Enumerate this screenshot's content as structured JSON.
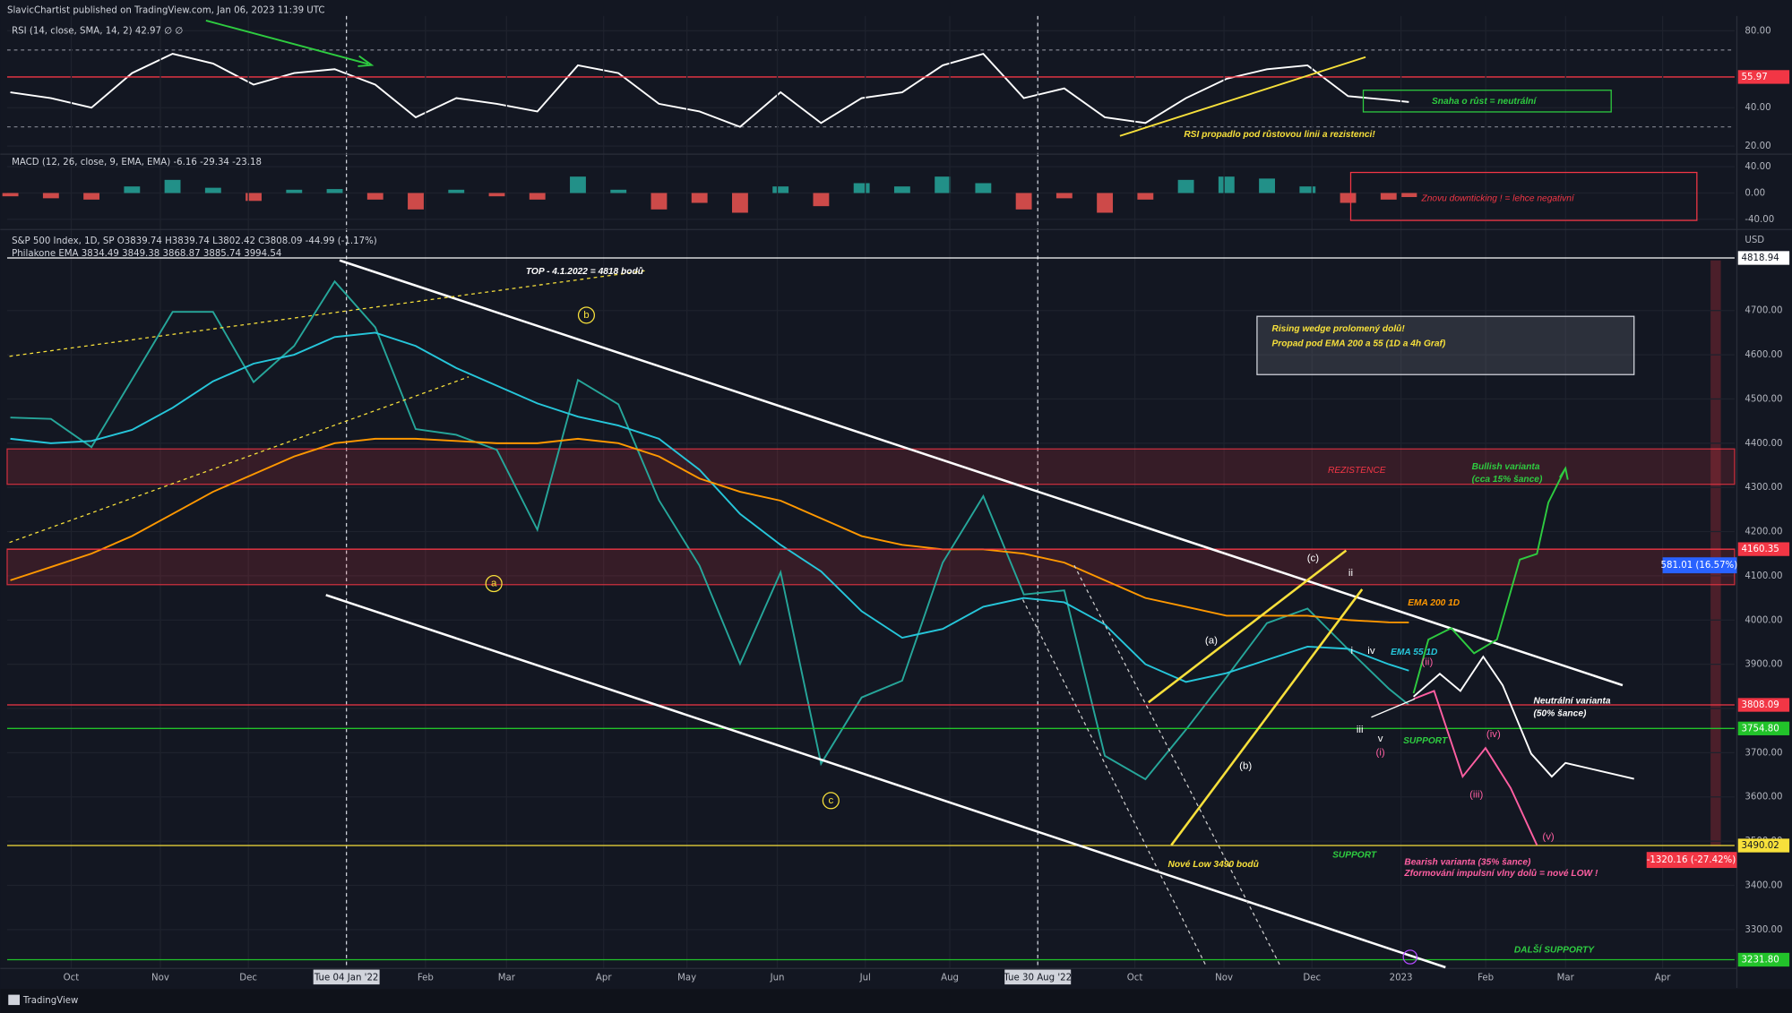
{
  "header": {
    "publisher": "SlavicChartist published on TradingView.com, Jan 06, 2023 11:39 UTC",
    "footer": "TradingView"
  },
  "chart_data": [
    {
      "type": "line",
      "legend": "RSI (14, close, SMA, 14, 2)  42.97  ∅  ∅",
      "x": [
        -3,
        -1,
        1,
        3,
        5,
        7,
        9,
        11,
        13,
        15,
        17,
        19,
        21,
        23,
        25,
        27,
        29,
        31,
        33,
        35,
        37,
        39,
        41,
        43,
        45,
        47,
        49,
        51,
        53,
        55,
        57,
        59,
        61,
        63,
        65,
        66
      ],
      "values": [
        48,
        45,
        40,
        58,
        68,
        63,
        52,
        58,
        60,
        52,
        35,
        45,
        42,
        38,
        62,
        58,
        42,
        38,
        30,
        48,
        32,
        45,
        48,
        62,
        68,
        45,
        50,
        35,
        32,
        45,
        55,
        60,
        62,
        46,
        44,
        42.97
      ],
      "color": "#ffffff",
      "xlim": [
        -3.16,
        82.07
      ],
      "ylim": [
        16.4,
        86.5
      ],
      "yticks": [
        {
          "value": 20,
          "label": "20.00"
        },
        {
          "value": 40,
          "label": "40.00"
        },
        {
          "value": 80,
          "label": "80.00"
        }
      ],
      "bands": [
        70,
        30
      ],
      "hlines": [
        {
          "value": 55.97,
          "color": "#f23645"
        }
      ],
      "annotations": [
        "Snaha o růst = neutrální",
        "RSI propadlo pod růstovou linii a rezistenci!"
      ]
    },
    {
      "type": "bar",
      "legend": "MACD (12, 26, close, 9, EMA, EMA)  -6.16  -29.34  -23.18",
      "x": [
        -3,
        -1,
        1,
        3,
        5,
        7,
        9,
        11,
        13,
        15,
        17,
        19,
        21,
        23,
        25,
        27,
        29,
        31,
        33,
        35,
        37,
        39,
        41,
        43,
        45,
        47,
        49,
        51,
        53,
        55,
        57,
        59,
        61,
        63,
        65,
        66
      ],
      "values": [
        -5,
        -8,
        -10,
        10,
        20,
        8,
        -12,
        5,
        6,
        -10,
        -25,
        5,
        -5,
        -10,
        25,
        5,
        -25,
        -15,
        -30,
        10,
        -20,
        15,
        10,
        25,
        15,
        -25,
        -8,
        -30,
        -10,
        20,
        25,
        22,
        10,
        -15,
        -10,
        -6.16
      ],
      "color_up": "#26a69a",
      "color_down": "#ef5350",
      "xlim": [
        -3.16,
        82.07
      ],
      "ylim": [
        -53.9,
        57.4
      ],
      "yticks": [
        {
          "value": -40,
          "label": "-40.00"
        },
        {
          "value": 0,
          "label": "0.00"
        },
        {
          "value": 40,
          "label": "40.00"
        }
      ],
      "annotations": [
        "Znovu downticking ! = lehce negativní"
      ]
    },
    {
      "type": "line",
      "legend": [
        "S&P 500 Index, 1D, SP  O3839.74  H3839.74  L3802.42  C3808.09  -44.99 (-1.17%)",
        "Philakone EMA  3834.49  3849.38  3868.87  3885.74  3994.54"
      ],
      "currency": "USD",
      "x": [
        -3,
        -1,
        1,
        3,
        5,
        7,
        9,
        11,
        13,
        15,
        17,
        19,
        21,
        23,
        25,
        27,
        29,
        31,
        33,
        35,
        37,
        39,
        41,
        43,
        45,
        47,
        49,
        51,
        53,
        55,
        57,
        59,
        61,
        63,
        65,
        66
      ],
      "series": [
        {
          "color": "#26a69a",
          "values": [
            4458,
            4455,
            4391,
            4544,
            4697,
            4697,
            4538,
            4620,
            4766,
            4662,
            4432,
            4419,
            4385,
            4204,
            4543,
            4488,
            4271,
            4123,
            3901,
            4108,
            3675,
            3825,
            3863,
            4130,
            4280,
            4058,
            4067,
            3693,
            3640,
            3752,
            3871,
            3993,
            4026,
            3934,
            3845,
            3808.09
          ]
        },
        {
          "name": "EMA 55 1D",
          "color": "#26c6da",
          "values": [
            4410,
            4400,
            4405,
            4430,
            4480,
            4540,
            4580,
            4600,
            4640,
            4650,
            4620,
            4570,
            4530,
            4490,
            4460,
            4440,
            4410,
            4340,
            4240,
            4170,
            4110,
            4020,
            3960,
            3980,
            4030,
            4050,
            4040,
            3990,
            3900,
            3860,
            3880,
            3910,
            3940,
            3935,
            3900,
            3885.74
          ]
        },
        {
          "name": "EMA 200 1D",
          "color": "#ff9800",
          "values": [
            4090,
            4120,
            4150,
            4190,
            4240,
            4290,
            4330,
            4370,
            4400,
            4410,
            4410,
            4405,
            4400,
            4400,
            4410,
            4400,
            4370,
            4320,
            4290,
            4270,
            4230,
            4190,
            4170,
            4160,
            4160,
            4150,
            4130,
            4090,
            4050,
            4030,
            4010,
            4010,
            4010,
            4000,
            3995,
            3994.54
          ]
        }
      ],
      "xlim": [
        -3.16,
        82.07
      ],
      "ylim": [
        3212,
        4878
      ],
      "yticks": [
        {
          "value": 3300,
          "label": "3300.00"
        },
        {
          "value": 3400,
          "label": "3400.00"
        },
        {
          "value": 3500,
          "label": "3500.00"
        },
        {
          "value": 3600,
          "label": "3600.00"
        },
        {
          "value": 3700,
          "label": "3700.00"
        },
        {
          "value": 3800,
          "label": "3800.00"
        },
        {
          "value": 3900,
          "label": "3900.00"
        },
        {
          "value": 4000,
          "label": "4000.00"
        },
        {
          "value": 4100,
          "label": "4100.00"
        },
        {
          "value": 4200,
          "label": "4200.00"
        },
        {
          "value": 4300,
          "label": "4300.00"
        },
        {
          "value": 4400,
          "label": "4400.00"
        },
        {
          "value": 4500,
          "label": "4500.00"
        },
        {
          "value": 4600,
          "label": "4600.00"
        },
        {
          "value": 4700,
          "label": "4700.00"
        }
      ],
      "xticks": [
        {
          "value": 0,
          "label": "Oct"
        },
        {
          "value": 4.4,
          "label": "Nov"
        },
        {
          "value": 8.74,
          "label": "Dec"
        },
        {
          "value": 13.58,
          "label": "Tue 04 Jan '22"
        },
        {
          "value": 17.48,
          "label": "Feb"
        },
        {
          "value": 21.48,
          "label": "Mar"
        },
        {
          "value": 26.27,
          "label": "Apr"
        },
        {
          "value": 30.38,
          "label": "May"
        },
        {
          "value": 34.84,
          "label": "Jun"
        },
        {
          "value": 39.18,
          "label": "Jul"
        },
        {
          "value": 43.35,
          "label": "Aug"
        },
        {
          "value": 47.69,
          "label": "Tue 30 Aug '22"
        },
        {
          "value": 52.48,
          "label": "Oct"
        },
        {
          "value": 56.88,
          "label": "Nov"
        },
        {
          "value": 61.22,
          "label": "Dec"
        },
        {
          "value": 65.61,
          "label": "2023"
        },
        {
          "value": 69.79,
          "label": "Feb"
        },
        {
          "value": 73.73,
          "label": "Mar"
        },
        {
          "value": 78.52,
          "label": "Apr"
        }
      ],
      "vlines": [
        13.58,
        47.69
      ],
      "zones": [
        [
          4307,
          4387
        ],
        [
          4080,
          4160.35
        ]
      ],
      "hlines": [
        {
          "value": 4818.94,
          "color": "#ffffff"
        },
        {
          "value": 4160.35,
          "color": "#f23645"
        },
        {
          "value": 3808.09,
          "color": "#f23645"
        },
        {
          "value": 3754.8,
          "label": "3754.80",
          "color": "#22c32a"
        },
        {
          "value": 3490.02,
          "color": "#f7e03b"
        },
        {
          "value": 3231.8,
          "label": "3231.80",
          "color": "#22c32a"
        }
      ],
      "annotations": [
        "TOP - 4.1.2022 = 4818 bodů",
        "Rising wedge prolomený dolů!",
        "Propad pod EMA 200 a 55 (1D a 4h Graf)",
        "REZISTENCE",
        "Bullish varianta",
        "(cca 15% šance)",
        "Neutrální varianta",
        "(50% šance)",
        "SUPPORT",
        "SUPPORT",
        "Nové Low 3490 bodů",
        "Bearish varianta (35% šance)",
        "Zformování impulsní vlny dolů = nové LOW !",
        "DALŠÍ SUPPORTY"
      ],
      "waves": [
        "(a)",
        "(b)",
        "(c)",
        "i",
        "ii",
        "iii",
        "iv",
        "v",
        "(i)",
        "(ii)",
        "(iii)",
        "(iv)",
        "(v)",
        "a",
        "b",
        "c"
      ],
      "measures": [
        "581.01 (16.57%)",
        "-1320.16 (-27.42%)"
      ]
    }
  ]
}
